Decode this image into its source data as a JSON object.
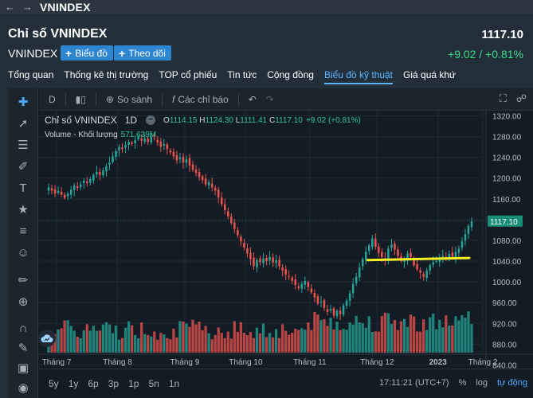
{
  "topbar": {
    "back_icon": "arrow-left-icon",
    "forward_icon": "arrow-right-icon",
    "title": "VNINDEX"
  },
  "header": {
    "title": "Chỉ số VNINDEX",
    "price": "1117.10",
    "symbol": "VNINDEX",
    "btn_chart": "Biểu đồ",
    "btn_follow": "Theo dõi",
    "change": "+9.02 / +0.81%",
    "tabs": [
      {
        "label": "Tổng quan"
      },
      {
        "label": "Thống kê thị trường"
      },
      {
        "label": "TOP cổ phiếu"
      },
      {
        "label": "Tin tức"
      },
      {
        "label": "Cộng đồng"
      },
      {
        "label": "Biểu đồ kỹ thuật",
        "active": true
      },
      {
        "label": "Giá quá khứ"
      }
    ]
  },
  "chart_toolbar": {
    "interval": "D",
    "compare": "So sánh",
    "indicators": "Các chỉ báo"
  },
  "legend": {
    "name": "Chỉ số VNINDEX",
    "interval": "1D",
    "o_label": "O",
    "o": "1114.15",
    "h_label": "H",
    "h": "1124.30",
    "l_label": "L",
    "l": "1111.41",
    "c_label": "C",
    "c": "1117.10",
    "change": "+9.02 (+0.81%)",
    "volume_label": "Volume - Khối lượng",
    "volume_value": "571.639M"
  },
  "bottom_bar": {
    "ranges": [
      "5y",
      "1y",
      "6p",
      "3p",
      "1p",
      "5n",
      "1n"
    ],
    "time": "17:11:21 (UTC+7)",
    "percent": "%",
    "log": "log",
    "auto": "tự động"
  },
  "colors": {
    "up": "#26a69a",
    "down": "#ef5350",
    "annotation": "#f5f021",
    "accent": "#5cb6ff"
  },
  "chart_data": {
    "type": "candlestick",
    "price_axis": {
      "ticks": [
        "1320.00",
        "1280.00",
        "1240.00",
        "1200.00",
        "1160.00",
        "1120.00",
        "1080.00",
        "1040.00",
        "1000.00",
        "960.00",
        "920.00",
        "880.00",
        "840.00"
      ],
      "ylim": [
        833,
        1330
      ]
    },
    "current_price_label": "1117.10",
    "time_axis_labels": [
      "Tháng 7",
      "Tháng 8",
      "Tháng 9",
      "Tháng 10",
      "Tháng 11",
      "Tháng 12",
      "2023",
      "Tháng 2"
    ],
    "closes": [
      1182,
      1176,
      1170,
      1175,
      1168,
      1162,
      1170,
      1178,
      1186,
      1181,
      1188,
      1195,
      1190,
      1198,
      1206,
      1212,
      1206,
      1215,
      1223,
      1230,
      1242,
      1252,
      1260,
      1256,
      1264,
      1270,
      1266,
      1273,
      1279,
      1272,
      1276,
      1270,
      1280,
      1276,
      1269,
      1260,
      1266,
      1256,
      1250,
      1242,
      1234,
      1240,
      1230,
      1236,
      1224,
      1216,
      1210,
      1202,
      1196,
      1188,
      1192,
      1182,
      1176,
      1163,
      1150,
      1138,
      1126,
      1113,
      1102,
      1090,
      1078,
      1066,
      1055,
      1044,
      1030,
      1042,
      1038,
      1045,
      1040,
      1048,
      1037,
      1042,
      1030,
      1022,
      1014,
      1010,
      1002,
      994,
      988,
      996,
      1002,
      990,
      980,
      970,
      958,
      962,
      950,
      942,
      948,
      935,
      944,
      938,
      955,
      964,
      978,
      996,
      1010,
      1028,
      1044,
      1058,
      1070,
      1084,
      1068,
      1056,
      1048,
      1042,
      1064,
      1072,
      1062,
      1050,
      1040,
      1046,
      1055,
      1048,
      1032,
      1024,
      1018,
      1010,
      1022,
      1032,
      1038,
      1040,
      1046,
      1050,
      1046,
      1054,
      1048,
      1058,
      1064,
      1078,
      1092,
      1108,
      1117
    ],
    "volume_label": "571.639M",
    "annotation": {
      "type": "trend-line",
      "from": 1042,
      "to": 1046
    }
  }
}
